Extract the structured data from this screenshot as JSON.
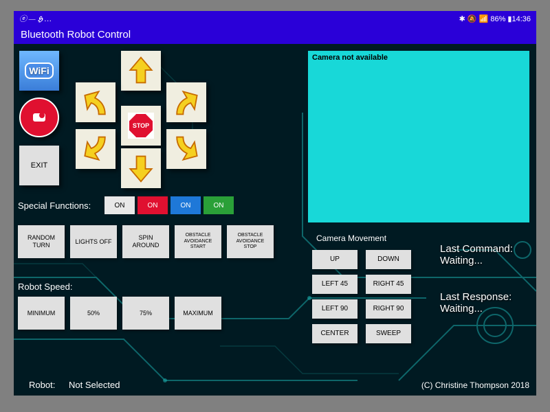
{
  "status": {
    "left_text": "ⓔ — 𝕳 …",
    "right_text": "✱ 🔕 📶 86% ▮14:36"
  },
  "app_title": "Bluetooth Robot Control",
  "left_icons": {
    "wifi_text": "WiFi",
    "exit_label": "EXIT"
  },
  "pad": {
    "stop_label": "STOP"
  },
  "camera_preview": {
    "text": "Camera not available",
    "bg": "#18d8d8"
  },
  "labels": {
    "special_functions": "Special Functions:",
    "robot_speed": "Robot Speed:",
    "robot_prefix": "Robot:",
    "robot_value": "Not Selected",
    "copyright": "(C) Christine Thompson 2018"
  },
  "status_text": {
    "last_command_title": "Last Command:",
    "last_command_value": "Waiting...",
    "last_response_title": "Last Response:",
    "last_response_value": "Waiting..."
  },
  "sf_toggles": [
    {
      "label": "ON",
      "bg": "#e8e8e8"
    },
    {
      "label": "ON",
      "bg": "#e01030",
      "color": "#fff"
    },
    {
      "label": "ON",
      "bg": "#1e78d8",
      "color": "#fff"
    },
    {
      "label": "ON",
      "bg": "#2aa038",
      "color": "#fff"
    }
  ],
  "function_buttons": [
    "RANDOM\nTURN",
    "LIGHTS OFF",
    "SPIN\nAROUND",
    "OBSTACLE\nAVOIDANCE\nSTART",
    "OBSTACLE\nAVOIDANCE\nSTOP"
  ],
  "speed_buttons": [
    "MINIMUM",
    "50%",
    "75%",
    "MAXIMUM"
  ],
  "camera_section": {
    "title": "Camera Movement",
    "buttons": [
      [
        "UP",
        "DOWN"
      ],
      [
        "LEFT 45",
        "RIGHT 45"
      ],
      [
        "LEFT 90",
        "RIGHT 90"
      ],
      [
        "CENTER",
        "SWEEP"
      ]
    ]
  },
  "colors": {
    "title_bar": "#2a00d8",
    "app_bg": "#001a22",
    "circuit_line": "#1aa5a5",
    "circuit_dim": "#0a5858"
  }
}
